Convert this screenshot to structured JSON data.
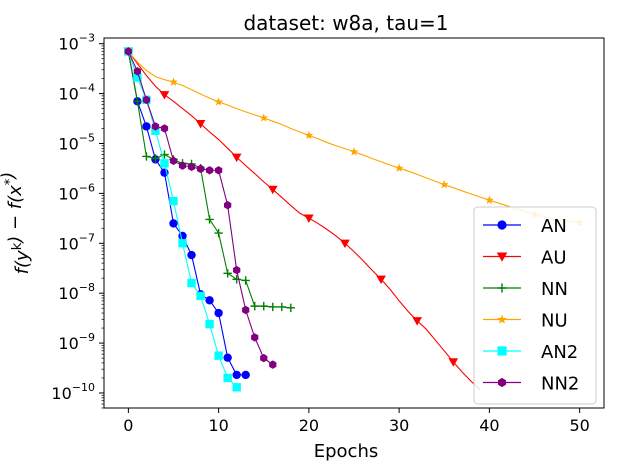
{
  "chart_data": {
    "type": "line",
    "title": "dataset: w8a, tau=1",
    "xlabel": "Epochs",
    "ylabel": "f(y^k) − f(x^*)",
    "yscale": "log",
    "xlim": [
      -2.7,
      52.7
    ],
    "ylim": [
      5e-11,
      0.0013
    ],
    "xticks": [
      0,
      10,
      20,
      30,
      40,
      50
    ],
    "xtick_labels": [
      "0",
      "10",
      "20",
      "30",
      "40",
      "50"
    ],
    "yticks": [
      1e-10,
      1e-09,
      1e-08,
      1e-07,
      1e-06,
      1e-05,
      0.0001,
      0.001
    ],
    "ytick_labels": [
      {
        "base": "10",
        "exp": "−10"
      },
      {
        "base": "10",
        "exp": "−9"
      },
      {
        "base": "10",
        "exp": "−8"
      },
      {
        "base": "10",
        "exp": "−7"
      },
      {
        "base": "10",
        "exp": "−6"
      },
      {
        "base": "10",
        "exp": "−5"
      },
      {
        "base": "10",
        "exp": "−4"
      },
      {
        "base": "10",
        "exp": "−3"
      }
    ],
    "legend_position": "lower-right",
    "series": [
      {
        "name": "AN",
        "color": "#0000ff",
        "marker": "circle",
        "markevery": 1,
        "x": [
          0,
          1,
          2,
          3,
          4,
          5,
          6,
          7,
          8,
          9,
          10,
          11,
          12,
          13
        ],
        "y": [
          0.0007,
          7e-05,
          2.2e-05,
          4.8e-06,
          2.6e-06,
          2.5e-07,
          1.4e-07,
          5.8e-08,
          9.5e-09,
          7.2e-09,
          4e-09,
          5.1e-10,
          2.3e-10,
          2.3e-10
        ]
      },
      {
        "name": "AU",
        "color": "#ff0000",
        "marker": "triangle-down",
        "markevery": 4,
        "x": [
          0,
          1,
          2,
          3,
          4,
          5,
          6,
          7,
          8,
          9,
          10,
          11,
          12,
          13,
          14,
          15,
          16,
          17,
          18,
          19,
          20,
          21,
          22,
          23,
          24,
          25,
          26,
          27,
          28,
          29,
          30,
          31,
          32,
          33,
          34,
          35,
          36,
          37,
          38,
          39
        ],
        "y": [
          0.0007,
          0.0004,
          0.00023,
          0.00014,
          9.5e-05,
          7e-05,
          5e-05,
          3.6e-05,
          2.5e-05,
          1.7e-05,
          1.2e-05,
          8e-06,
          5.3e-06,
          3.6e-06,
          2.5e-06,
          1.7e-06,
          1.2e-06,
          8.3e-07,
          5.7e-07,
          4e-07,
          3.2e-07,
          2.5e-07,
          1.9e-07,
          1.4e-07,
          1e-07,
          6.8e-08,
          4.5e-08,
          2.9e-08,
          1.9e-08,
          1.2e-08,
          7e-09,
          4.3e-09,
          2.8e-09,
          1.9e-09,
          1.15e-09,
          7e-10,
          4.2e-10,
          2.6e-10,
          1.7e-10,
          1.15e-10
        ]
      },
      {
        "name": "NN",
        "color": "#008000",
        "marker": "plus",
        "markevery": 1,
        "x": [
          0,
          1,
          2,
          3,
          4,
          5,
          6,
          7,
          8,
          9,
          10,
          11,
          12,
          13,
          14,
          15,
          16,
          17,
          18
        ],
        "y": [
          0.0007,
          7e-05,
          5.5e-06,
          5e-06,
          6e-06,
          4.8e-06,
          4e-06,
          3.9e-06,
          3.2e-06,
          3e-07,
          1.6e-07,
          2.5e-08,
          1.9e-08,
          1.8e-08,
          5.5e-09,
          5.5e-09,
          5.3e-09,
          5.3e-09,
          5.1e-09
        ]
      },
      {
        "name": "NU",
        "color": "#ffa500",
        "marker": "star",
        "markevery": 5,
        "x": [
          0,
          1,
          2,
          3,
          4,
          5,
          6,
          7,
          8,
          9,
          10,
          11,
          12,
          13,
          14,
          15,
          16,
          17,
          18,
          19,
          20,
          21,
          22,
          23,
          24,
          25,
          26,
          27,
          28,
          29,
          30,
          31,
          32,
          33,
          34,
          35,
          36,
          37,
          38,
          39,
          40,
          41,
          42,
          43,
          44,
          45,
          46,
          47,
          48,
          49,
          50
        ],
        "y": [
          0.0007,
          0.00043,
          0.00029,
          0.00022,
          0.00019,
          0.00017,
          0.000145,
          0.00012,
          9.8e-05,
          8.1e-05,
          6.8e-05,
          5.9e-05,
          5e-05,
          4.3e-05,
          3.75e-05,
          3.25e-05,
          2.8e-05,
          2.4e-05,
          2e-05,
          1.7e-05,
          1.45e-05,
          1.25e-05,
          1.05e-05,
          9e-06,
          7.9e-06,
          6.8e-06,
          5.9e-06,
          5e-06,
          4.3e-06,
          3.7e-06,
          3.2e-06,
          2.8e-06,
          2.4e-06,
          2.05e-06,
          1.75e-06,
          1.5e-06,
          1.3e-06,
          1.12e-06,
          9.7e-07,
          8.4e-07,
          7.3e-07,
          6.4e-07,
          5.6e-07,
          4.9e-07,
          4.3e-07,
          3.8e-07,
          3.4e-07,
          3.1e-07,
          2.9e-07,
          2.75e-07,
          2.6e-07
        ]
      },
      {
        "name": "AN2",
        "color": "#00ffff",
        "marker": "square",
        "markevery": 1,
        "x": [
          0,
          1,
          2,
          3,
          4,
          5,
          6,
          7,
          8,
          9,
          10,
          11,
          12
        ],
        "y": [
          0.0007,
          0.00021,
          7.5e-05,
          1.8e-05,
          4e-06,
          7e-07,
          1e-07,
          1.6e-08,
          8.8e-09,
          2.4e-09,
          5.6e-10,
          2e-10,
          1.3e-10
        ]
      },
      {
        "name": "NN2",
        "color": "#800080",
        "marker": "hexagon",
        "markevery": 1,
        "x": [
          0,
          1,
          2,
          3,
          4,
          5,
          6,
          7,
          8,
          9,
          10,
          11,
          12,
          13,
          14,
          15,
          16
        ],
        "y": [
          0.0007,
          0.00028,
          7.5e-05,
          2.2e-05,
          2e-05,
          4.5e-06,
          3.6e-06,
          3.4e-06,
          3.1e-06,
          2.9e-06,
          2.9e-06,
          5.8e-07,
          2.9e-08,
          4.6e-09,
          1.3e-09,
          5e-10,
          3.7e-10
        ]
      }
    ]
  }
}
